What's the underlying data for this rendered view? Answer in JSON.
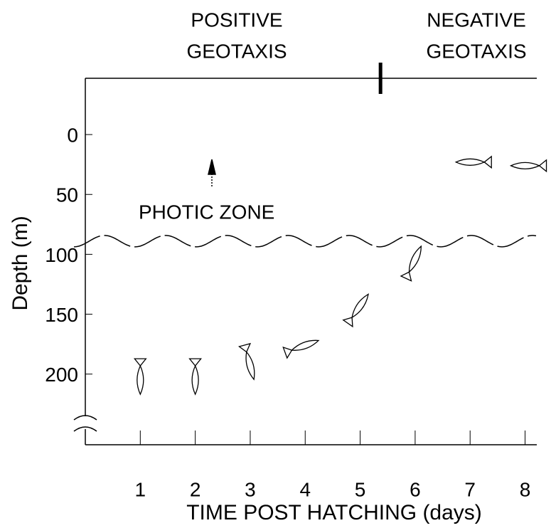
{
  "chart_data": {
    "type": "scatter",
    "annotations": {
      "left_phase": [
        "POSITIVE",
        "GEOTAXIS"
      ],
      "right_phase": [
        "NEGATIVE",
        "GEOTAXIS"
      ],
      "zone": "PHOTIC ZONE"
    },
    "photic_depth": 89,
    "phase_change_day": 5.37,
    "xlabel": "TIME POST HATCHING (days)",
    "ylabel": "Depth (m)",
    "x": [
      1,
      2,
      3,
      4,
      5,
      6,
      7,
      8
    ],
    "values": [
      205,
      205,
      193,
      176,
      143,
      104,
      23,
      26
    ],
    "orientation_deg": [
      90,
      90,
      75,
      -20,
      -55,
      -65,
      180,
      180
    ],
    "color": "#000000",
    "xlim": [
      0,
      8.2
    ],
    "xticks": [
      1,
      2,
      3,
      4,
      5,
      6,
      7,
      8
    ],
    "ylim": [
      -47,
      259
    ],
    "yticks": [
      0,
      50,
      100,
      150,
      200
    ],
    "y_inverted": true
  }
}
